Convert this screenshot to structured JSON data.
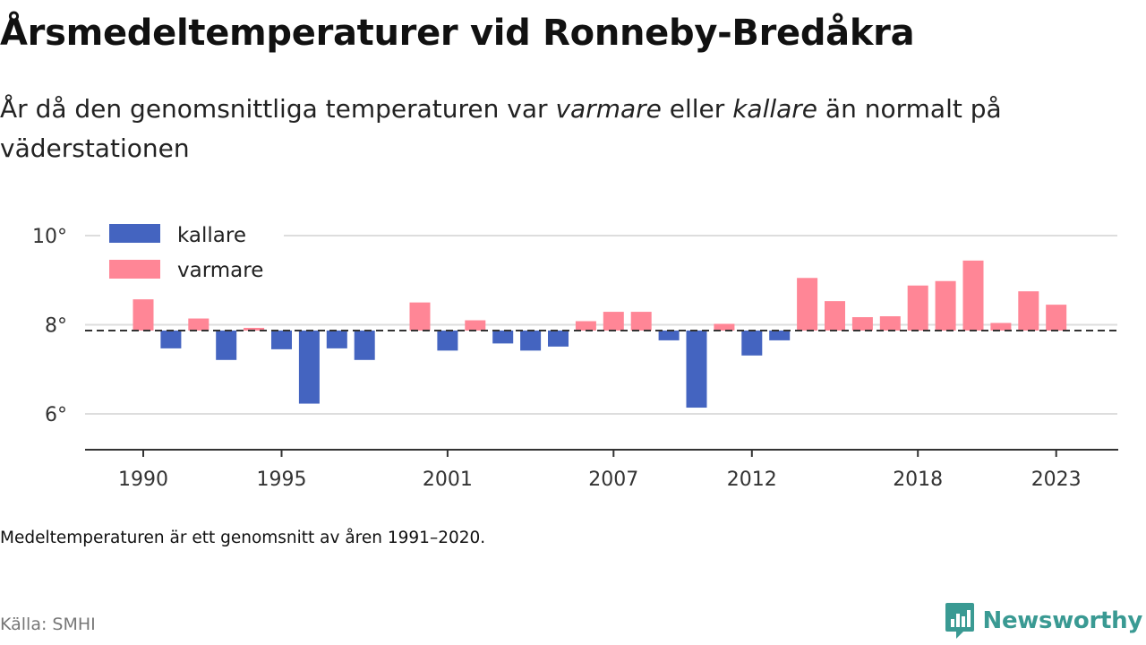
{
  "header": {
    "title": "Årsmedeltemperaturer vid Ronneby-Bredåkra",
    "subtitle_parts": [
      "År då den genomsnittliga temperaturen var ",
      "varmare",
      " eller ",
      "kallare",
      " än normalt på väderstationen"
    ]
  },
  "footer": {
    "note": "Medeltemperaturen är ett genomsnitt av åren 1991–2020.",
    "source": "Källa: SMHI",
    "brand": "Newsworthy"
  },
  "colors": {
    "colder": "#4464c0",
    "warmer": "#ff8696",
    "grid": "#dddddd",
    "baseline": "#333333",
    "brand": "#3a9a93"
  },
  "chart_data": {
    "type": "bar",
    "title": "",
    "xlabel": "",
    "ylabel": "",
    "ylim": [
      5.2,
      10.2
    ],
    "yticks": [
      6,
      8,
      10
    ],
    "ytick_labels": [
      "6°",
      "8°",
      "10°"
    ],
    "xticks": [
      1990,
      1995,
      2001,
      2007,
      2012,
      2018,
      2023
    ],
    "reference_line": 7.87,
    "grid": true,
    "legend_position": "top-left",
    "legend": [
      {
        "key": "colder",
        "label": "kallare"
      },
      {
        "key": "warmer",
        "label": "varmare"
      }
    ],
    "categories": [
      1990,
      1991,
      1992,
      1993,
      1994,
      1995,
      1996,
      1997,
      1998,
      1999,
      2000,
      2001,
      2002,
      2003,
      2004,
      2005,
      2006,
      2007,
      2008,
      2009,
      2010,
      2011,
      2012,
      2013,
      2014,
      2015,
      2016,
      2017,
      2018,
      2019,
      2020,
      2021,
      2022,
      2023
    ],
    "values": [
      8.57,
      7.47,
      8.14,
      7.21,
      7.93,
      7.45,
      6.23,
      7.47,
      7.21,
      null,
      8.5,
      7.42,
      8.1,
      7.58,
      7.42,
      7.51,
      8.08,
      8.29,
      8.29,
      7.65,
      6.14,
      8.02,
      7.31,
      7.65,
      9.05,
      8.53,
      8.17,
      8.19,
      8.88,
      8.98,
      9.44,
      8.04,
      8.75,
      8.45
    ]
  }
}
